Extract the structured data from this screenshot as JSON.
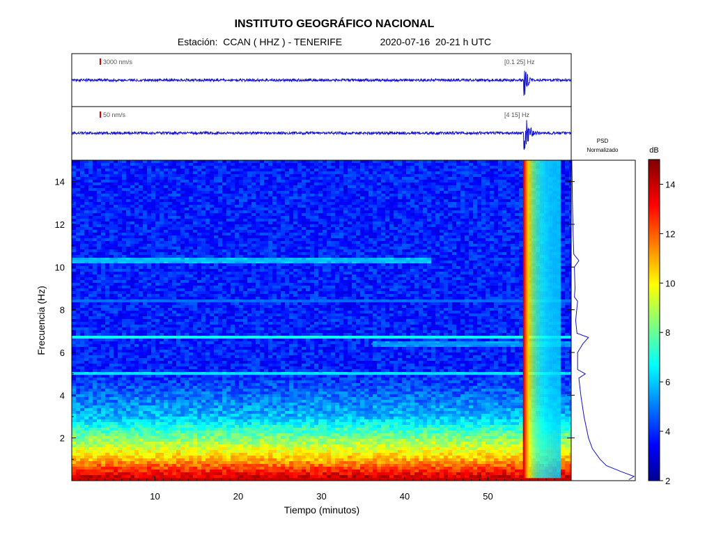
{
  "header": {
    "title": "INSTITUTO GEOGRÁFICO NACIONAL",
    "station_label": "Estación:",
    "station": "CCAN ( HHZ ) - TENERIFE",
    "datetime": "2020-07-16  20-21 h UTC"
  },
  "traces": [
    {
      "scale_label": "3000 nm/s",
      "band_label": "[0.1 25] Hz",
      "event_minute": 54.3,
      "event_peak": 0.9,
      "noise": 0.05,
      "decay_min": 1.1
    },
    {
      "scale_label": "50 nm/s",
      "band_label": "[4 15] Hz",
      "event_minute": 54.3,
      "event_peak": 1.0,
      "noise": 0.05,
      "decay_min": 1.6
    }
  ],
  "psd_label": [
    "PSD",
    "Normalizado"
  ],
  "colorbar": {
    "unit": "dB",
    "min": 2,
    "max": 15,
    "ticks": [
      2,
      4,
      6,
      8,
      10,
      12,
      14
    ]
  },
  "chart_data": {
    "type": "heatmap",
    "xlabel": "Tiempo (minutos)",
    "ylabel": "Frecuencia (Hz)",
    "xlim": [
      0,
      60
    ],
    "ylim": [
      0,
      15
    ],
    "xticks": [
      10,
      20,
      30,
      40,
      50
    ],
    "yticks": [
      2,
      4,
      6,
      8,
      10,
      12,
      14
    ],
    "event": {
      "start_minute": 54.2,
      "peak_db": 14,
      "duration_min": 4.5
    },
    "background_db": {
      "at_0Hz": 14,
      "at_1Hz": 11,
      "at_3Hz": 6,
      "above_5Hz": 4
    },
    "spectral_lines": [
      {
        "freq_hz": 10.3,
        "db": 6.0,
        "start_minute": 0,
        "end_minute": 43
      },
      {
        "freq_hz": 6.7,
        "db": 7.0,
        "start_minute": 0,
        "end_minute": 60
      },
      {
        "freq_hz": 6.4,
        "db": 5.5,
        "start_minute": 36,
        "end_minute": 60
      },
      {
        "freq_hz": 5.0,
        "db": 6.5,
        "start_minute": 0,
        "end_minute": 60
      },
      {
        "freq_hz": 8.4,
        "db": 5.0,
        "start_minute": 0,
        "end_minute": 60
      }
    ],
    "psd_normalized": [
      [
        0.05,
        0.9
      ],
      [
        0.2,
        0.98
      ],
      [
        0.4,
        0.8
      ],
      [
        0.7,
        0.55
      ],
      [
        1.0,
        0.45
      ],
      [
        1.5,
        0.33
      ],
      [
        2.0,
        0.27
      ],
      [
        3.0,
        0.2
      ],
      [
        4.0,
        0.15
      ],
      [
        4.8,
        0.12
      ],
      [
        5.0,
        0.22
      ],
      [
        5.2,
        0.1
      ],
      [
        6.0,
        0.1
      ],
      [
        6.4,
        0.18
      ],
      [
        6.7,
        0.27
      ],
      [
        6.9,
        0.09
      ],
      [
        7.5,
        0.07
      ],
      [
        8.4,
        0.1
      ],
      [
        8.6,
        0.05
      ],
      [
        9.0,
        0.06
      ],
      [
        10.0,
        0.05
      ],
      [
        10.3,
        0.12
      ],
      [
        10.6,
        0.04
      ],
      [
        11.5,
        0.03
      ],
      [
        13.0,
        0.02
      ],
      [
        15.0,
        0.01
      ]
    ]
  }
}
